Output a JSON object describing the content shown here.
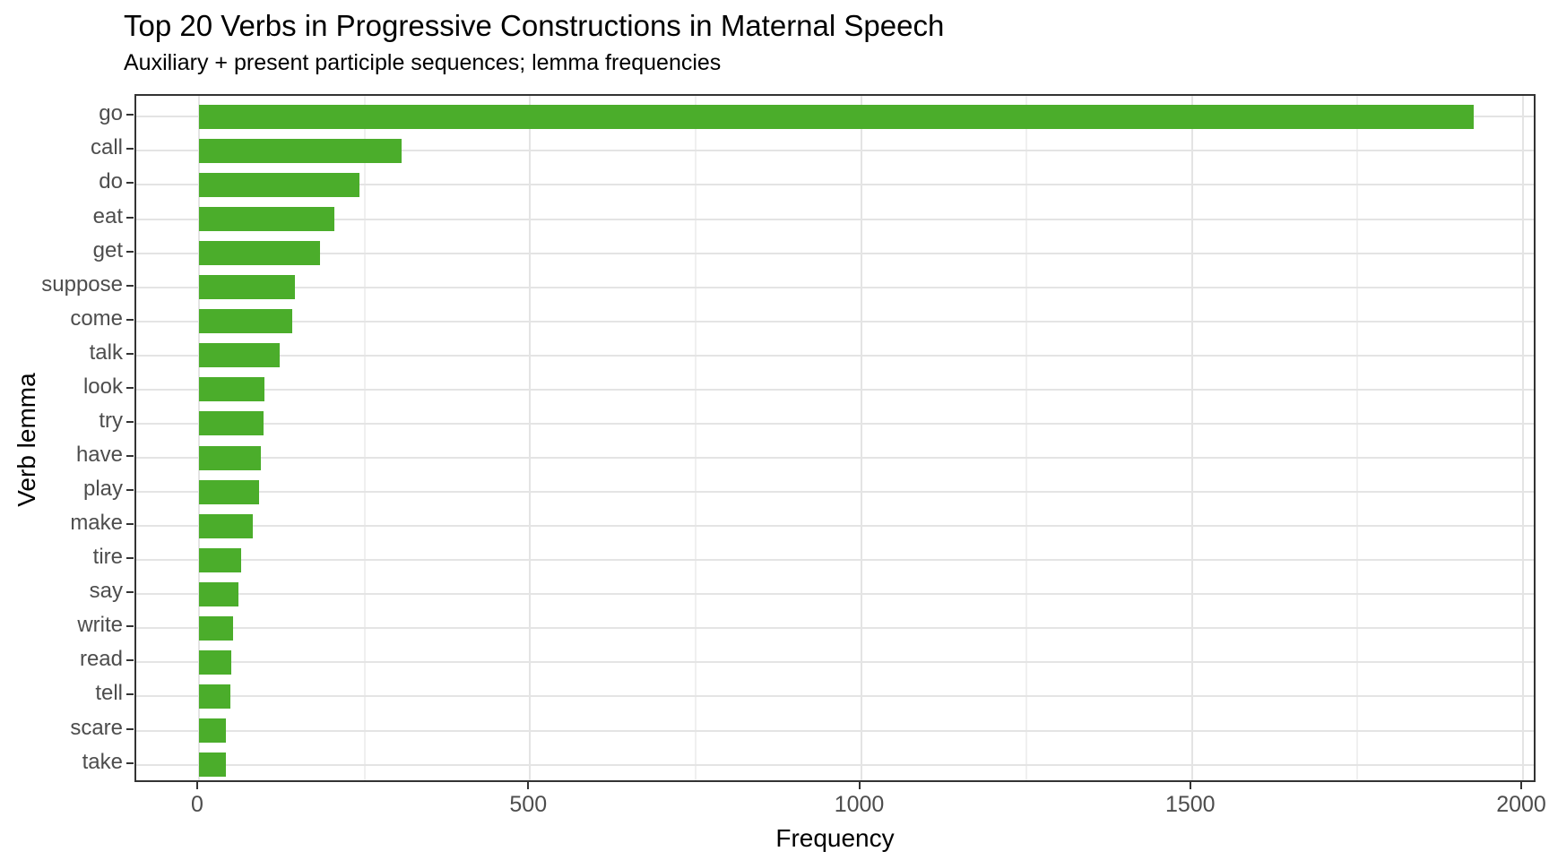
{
  "title": "Top 20 Verbs in Progressive Constructions in Maternal Speech",
  "subtitle": "Auxiliary + present participle sequences; lemma frequencies",
  "chart_data": {
    "type": "bar",
    "orientation": "horizontal",
    "title": "Top 20 Verbs in Progressive Constructions in Maternal Speech",
    "subtitle": "Auxiliary + present participle sequences; lemma frequencies",
    "xlabel": "Frequency",
    "ylabel": "Verb lemma",
    "categories": [
      "go",
      "call",
      "do",
      "eat",
      "get",
      "suppose",
      "come",
      "talk",
      "look",
      "try",
      "have",
      "play",
      "make",
      "tire",
      "say",
      "write",
      "read",
      "tell",
      "scare",
      "take"
    ],
    "values": [
      1925,
      306,
      242,
      204,
      183,
      145,
      141,
      122,
      99,
      98,
      94,
      91,
      81,
      64,
      59,
      52,
      49,
      48,
      41,
      40
    ],
    "x_ticks": [
      0,
      500,
      1000,
      1500,
      2000
    ],
    "x_minor_ticks": [
      250,
      750,
      1250,
      1750
    ],
    "xlim": [
      -95,
      2022
    ],
    "grid": "major and minor vertical, major horizontal per category",
    "legend": "none",
    "colors": {
      "bar": "#4BAD2B",
      "grid_major": "#E4E4E4",
      "grid_minor": "#F0F0F0",
      "axis_text": "#4D4D4D",
      "axis_title": "#000000",
      "panel_border": "#333333",
      "background": "#FFFFFF"
    }
  }
}
